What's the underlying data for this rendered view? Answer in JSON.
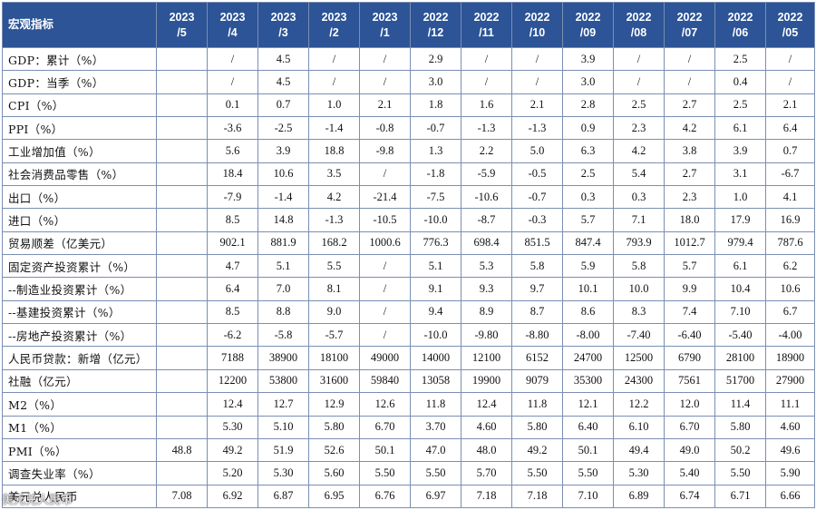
{
  "table": {
    "header_label": "宏观指标",
    "periods": [
      {
        "year": "2023",
        "month": "/5"
      },
      {
        "year": "2023",
        "month": "/4"
      },
      {
        "year": "2023",
        "month": "/3"
      },
      {
        "year": "2023",
        "month": "/2"
      },
      {
        "year": "2023",
        "month": "/1"
      },
      {
        "year": "2022",
        "month": "/12"
      },
      {
        "year": "2022",
        "month": "/11"
      },
      {
        "year": "2022",
        "month": "/10"
      },
      {
        "year": "2022",
        "month": "/09"
      },
      {
        "year": "2022",
        "month": "/08"
      },
      {
        "year": "2022",
        "month": "/07"
      },
      {
        "year": "2022",
        "month": "/06"
      },
      {
        "year": "2022",
        "month": "/05"
      }
    ],
    "rows": [
      {
        "label": "GDP：累计（%）",
        "values": [
          "",
          "/",
          "4.5",
          "/",
          "/",
          "2.9",
          "/",
          "/",
          "3.9",
          "/",
          "/",
          "2.5",
          "/"
        ]
      },
      {
        "label": "GDP：当季（%）",
        "values": [
          "",
          "/",
          "4.5",
          "/",
          "/",
          "3.0",
          "/",
          "/",
          "3.0",
          "/",
          "/",
          "0.4",
          "/"
        ]
      },
      {
        "label": "CPI（%）",
        "values": [
          "",
          "0.1",
          "0.7",
          "1.0",
          "2.1",
          "1.8",
          "1.6",
          "2.1",
          "2.8",
          "2.5",
          "2.7",
          "2.5",
          "2.1"
        ]
      },
      {
        "label": "PPI（%）",
        "values": [
          "",
          "-3.6",
          "-2.5",
          "-1.4",
          "-0.8",
          "-0.7",
          "-1.3",
          "-1.3",
          "0.9",
          "2.3",
          "4.2",
          "6.1",
          "6.4"
        ]
      },
      {
        "label": "工业增加值（%）",
        "values": [
          "",
          "5.6",
          "3.9",
          "18.8",
          "-9.8",
          "1.3",
          "2.2",
          "5.0",
          "6.3",
          "4.2",
          "3.8",
          "3.9",
          "0.7"
        ]
      },
      {
        "label": "社会消费品零售（%）",
        "values": [
          "",
          "18.4",
          "10.6",
          "3.5",
          "/",
          "-1.8",
          "-5.9",
          "-0.5",
          "2.5",
          "5.4",
          "2.7",
          "3.1",
          "-6.7"
        ]
      },
      {
        "label": "出口（%）",
        "values": [
          "",
          "-7.9",
          "-1.4",
          "4.2",
          "-21.4",
          "-7.5",
          "-10.6",
          "-0.7",
          "0.3",
          "0.3",
          "2.3",
          "1.0",
          "4.1"
        ]
      },
      {
        "label": "进口（%）",
        "values": [
          "",
          "8.5",
          "14.8",
          "-1.3",
          "-10.5",
          "-10.0",
          "-8.7",
          "-0.3",
          "5.7",
          "7.1",
          "18.0",
          "17.9",
          "16.9"
        ]
      },
      {
        "label": "贸易顺差（亿美元）",
        "values": [
          "",
          "902.1",
          "881.9",
          "168.2",
          "1000.6",
          "776.3",
          "698.4",
          "851.5",
          "847.4",
          "793.9",
          "1012.7",
          "979.4",
          "787.6"
        ]
      },
      {
        "label": "固定资产投资累计（%）",
        "values": [
          "",
          "4.7",
          "5.1",
          "5.5",
          "/",
          "5.1",
          "5.3",
          "5.8",
          "5.9",
          "5.8",
          "5.7",
          "6.1",
          "6.2"
        ]
      },
      {
        "label": "--制造业投资累计（%）",
        "values": [
          "",
          "6.4",
          "7.0",
          "8.1",
          "/",
          "9.1",
          "9.3",
          "9.7",
          "10.1",
          "10.0",
          "9.9",
          "10.4",
          "10.6"
        ]
      },
      {
        "label": "--基建投资累计（%）",
        "values": [
          "",
          "8.5",
          "8.8",
          "9.0",
          "/",
          "9.4",
          "8.9",
          "8.7",
          "8.6",
          "8.3",
          "7.4",
          "7.10",
          "6.7"
        ]
      },
      {
        "label": "--房地产投资累计（%）",
        "values": [
          "",
          "-6.2",
          "-5.8",
          "-5.7",
          "/",
          "-10.0",
          "-9.80",
          "-8.80",
          "-8.00",
          "-7.40",
          "-6.40",
          "-5.40",
          "-4.00"
        ]
      },
      {
        "label": "人民币贷款：新增（亿元）",
        "values": [
          "",
          "7188",
          "38900",
          "18100",
          "49000",
          "14000",
          "12100",
          "6152",
          "24700",
          "12500",
          "6790",
          "28100",
          "18900"
        ]
      },
      {
        "label": "社融（亿元）",
        "values": [
          "",
          "12200",
          "53800",
          "31600",
          "59840",
          "13058",
          "19900",
          "9079",
          "35300",
          "24300",
          "7561",
          "51700",
          "27900"
        ]
      },
      {
        "label": "M2（%）",
        "values": [
          "",
          "12.4",
          "12.7",
          "12.9",
          "12.6",
          "11.8",
          "12.4",
          "11.8",
          "12.1",
          "12.2",
          "12.0",
          "11.4",
          "11.1"
        ]
      },
      {
        "label": "M1（%）",
        "values": [
          "",
          "5.30",
          "5.10",
          "5.80",
          "6.70",
          "3.70",
          "4.60",
          "5.80",
          "6.40",
          "6.10",
          "6.70",
          "5.80",
          "4.60"
        ]
      },
      {
        "label": "PMI（%）",
        "values": [
          "48.8",
          "49.2",
          "51.9",
          "52.6",
          "50.1",
          "47.0",
          "48.0",
          "49.2",
          "50.1",
          "49.4",
          "49.0",
          "50.2",
          "49.6"
        ]
      },
      {
        "label": "调查失业率（%）",
        "values": [
          "",
          "5.20",
          "5.30",
          "5.60",
          "5.50",
          "5.50",
          "5.70",
          "5.50",
          "5.50",
          "5.30",
          "5.40",
          "5.50",
          "5.90"
        ]
      },
      {
        "label": "美元兑人民币",
        "values": [
          "7.08",
          "6.92",
          "6.87",
          "6.95",
          "6.76",
          "6.97",
          "7.18",
          "7.18",
          "7.10",
          "6.89",
          "6.74",
          "6.71",
          "6.66"
        ]
      }
    ]
  },
  "watermark": "美元兑人民币"
}
